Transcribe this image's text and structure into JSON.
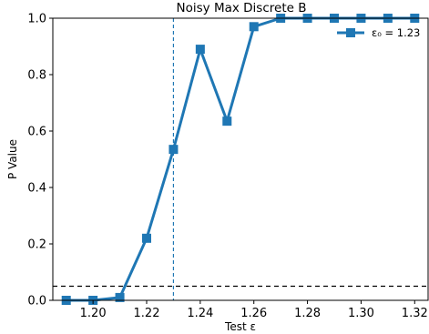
{
  "chart_data": {
    "type": "line",
    "title": "Noisy Max Discrete B",
    "xlabel": "Test ε",
    "ylabel": "P Value",
    "xlim": [
      1.185,
      1.325
    ],
    "ylim": [
      0.0,
      1.0
    ],
    "x_ticks": [
      "1.20",
      "1.22",
      "1.24",
      "1.26",
      "1.28",
      "1.30",
      "1.32"
    ],
    "y_ticks": [
      "0.0",
      "0.2",
      "0.4",
      "0.6",
      "0.8",
      "1.0"
    ],
    "grid": false,
    "legend": {
      "position": "top-right",
      "label": "ε₀ = 1.23"
    },
    "series": [
      {
        "name": "ε₀ = 1.23",
        "color": "#1f77b4",
        "marker": "square",
        "x": [
          1.19,
          1.2,
          1.21,
          1.22,
          1.23,
          1.24,
          1.25,
          1.26,
          1.27,
          1.28,
          1.29,
          1.3,
          1.31,
          1.32
        ],
        "y": [
          0.0,
          0.0,
          0.01,
          0.22,
          0.535,
          0.89,
          0.635,
          0.97,
          1.0,
          1.0,
          1.0,
          1.0,
          1.0,
          1.0
        ]
      }
    ],
    "reference_lines": [
      {
        "orientation": "vertical",
        "value": 1.23,
        "color": "#1f77b4",
        "style": "dashed"
      },
      {
        "orientation": "horizontal",
        "value": 0.05,
        "color": "#000000",
        "style": "dashed"
      }
    ]
  }
}
